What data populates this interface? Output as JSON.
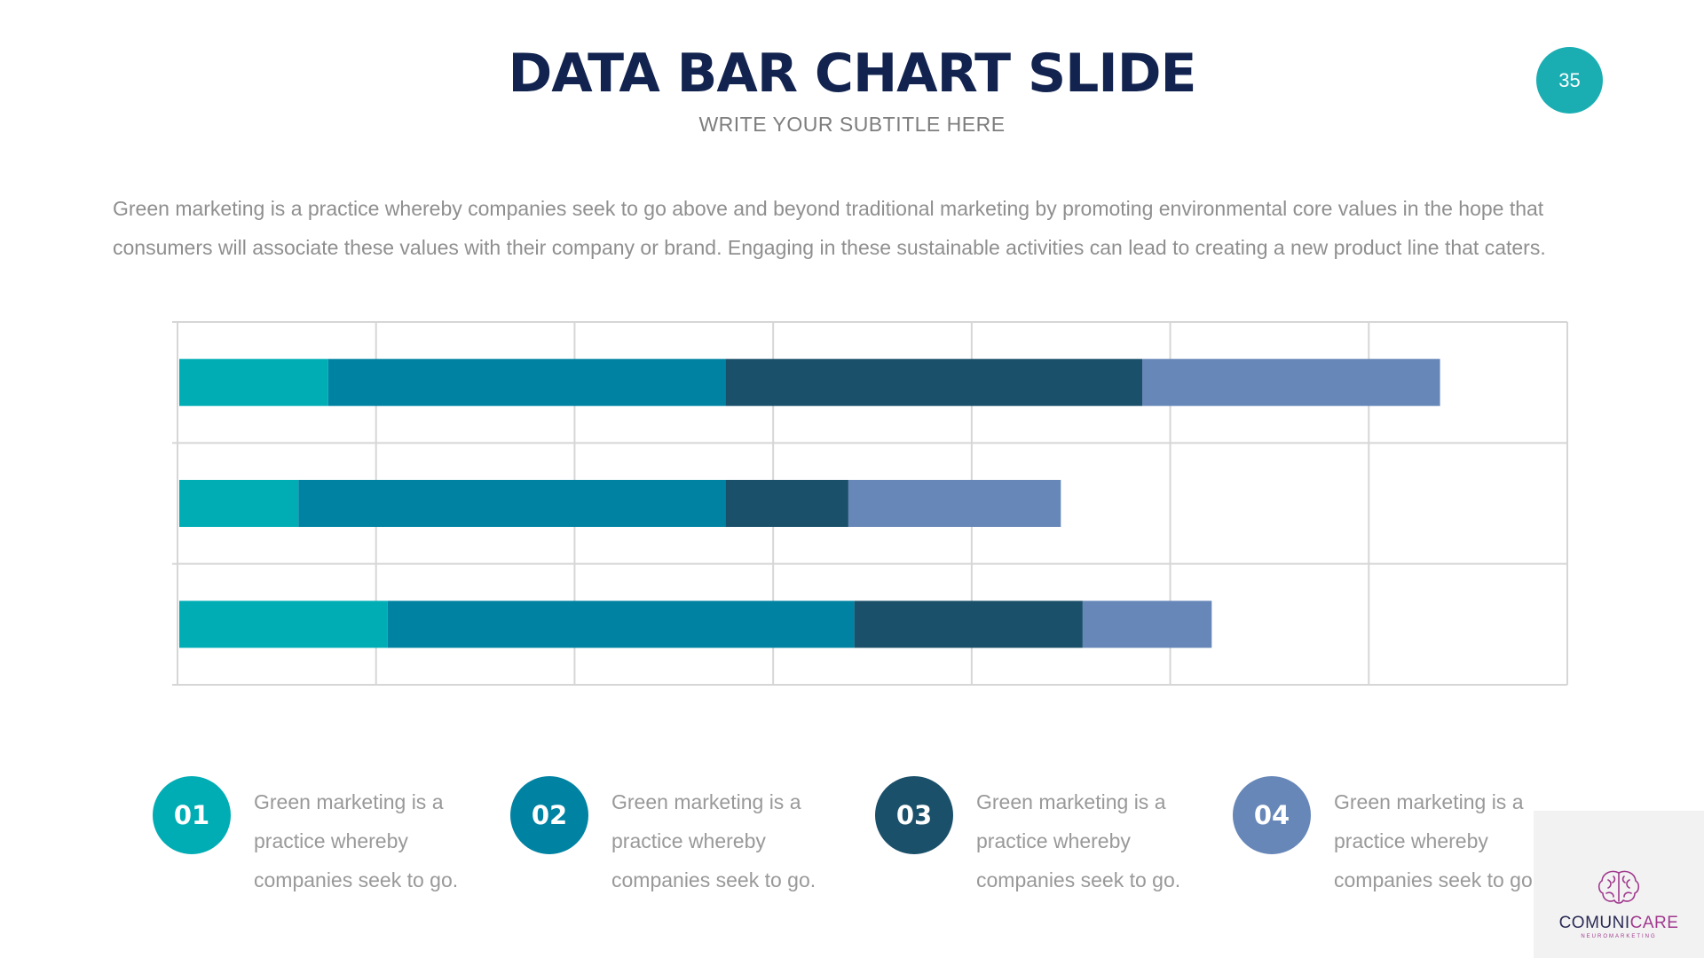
{
  "header": {
    "title": "DATA BAR CHART SLIDE",
    "subtitle": "WRITE YOUR SUBTITLE HERE",
    "page_number": "35"
  },
  "intro_text": "Green marketing is a practice whereby companies seek to go above and beyond traditional marketing by promoting environmental core values in the hope that consumers will associate these values with their company or brand. Engaging in these sustainable activities can lead to creating a new product line that caters.",
  "colors": {
    "teal": "#00adb5",
    "blue": "#0083a3",
    "navy": "#1a506a",
    "periwinkle": "#6687b8",
    "title": "#12234f"
  },
  "chart_data": {
    "type": "bar",
    "orientation": "horizontal",
    "stacked": true,
    "categories": [
      "",
      "",
      ""
    ],
    "series": [
      {
        "color": "#00adb5",
        "values": [
          0.75,
          0.6,
          1.05
        ]
      },
      {
        "color": "#0083a3",
        "values": [
          2.0,
          2.15,
          2.35
        ]
      },
      {
        "color": "#1a506a",
        "values": [
          2.1,
          0.62,
          1.15
        ]
      },
      {
        "color": "#6687b8",
        "values": [
          1.5,
          1.07,
          0.65
        ]
      }
    ],
    "xlim": [
      0,
      7
    ],
    "grid": true,
    "legend": "bottom"
  },
  "legend": [
    {
      "number": "01",
      "text": "Green marketing is a practice whereby companies seek to go.",
      "color": "#00adb5"
    },
    {
      "number": "02",
      "text": "Green marketing is a practice whereby companies seek to go.",
      "color": "#0083a3"
    },
    {
      "number": "03",
      "text": "Green marketing is a practice whereby companies seek to go.",
      "color": "#1a506a"
    },
    {
      "number": "04",
      "text": "Green marketing is a practice whereby companies seek to go.",
      "color": "#6687b8"
    }
  ],
  "logo": {
    "name_part1": "COMUNI",
    "name_part2": "CARE",
    "tagline": "NEUROMARKETING",
    "icon": "brain-icon"
  }
}
